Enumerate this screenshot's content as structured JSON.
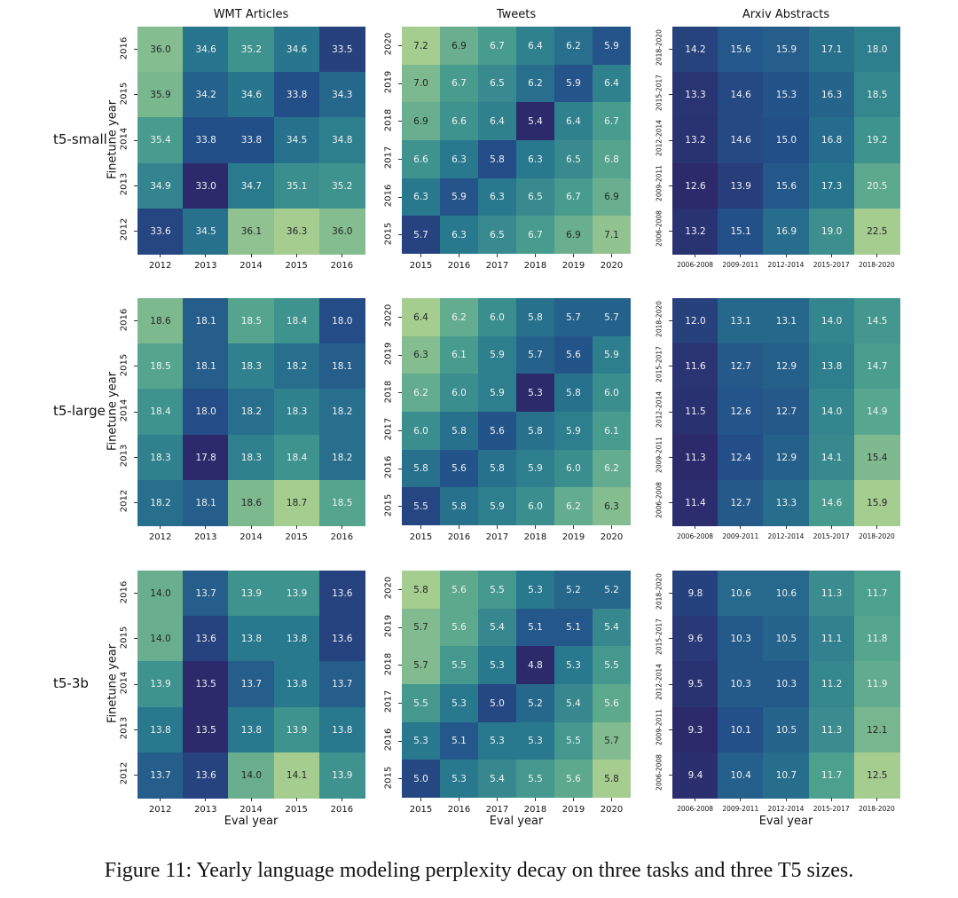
{
  "caption": "Figure 11: Yearly language modeling perplexity decay on three tasks and three T5 sizes.",
  "xlabel": "Eval year",
  "ylabel": "Finetune year",
  "tasks": [
    "WMT Articles",
    "Tweets",
    "Arxiv Abstracts"
  ],
  "models": [
    "t5-small",
    "t5-large",
    "t5-3b"
  ],
  "chart_data": {
    "type": "heatmap",
    "colormap": "crest_r",
    "colors": {
      "low": "#2c2a6b",
      "high": "#a5cd90"
    },
    "axes": {
      "WMT Articles": {
        "x": [
          "2012",
          "2013",
          "2014",
          "2015",
          "2016"
        ],
        "y_top_to_bottom": [
          "2016",
          "2015",
          "2014",
          "2013",
          "2012"
        ]
      },
      "Tweets": {
        "x": [
          "2015",
          "2016",
          "2017",
          "2018",
          "2019",
          "2020"
        ],
        "y_top_to_bottom": [
          "2020",
          "2019",
          "2018",
          "2017",
          "2016",
          "2015"
        ]
      },
      "Arxiv Abstracts": {
        "x": [
          "2006-2008",
          "2009-2011",
          "2012-2014",
          "2015-2017",
          "2018-2020"
        ],
        "y_top_to_bottom": [
          "2018-2020",
          "2015-2017",
          "2012-2014",
          "2009-2011",
          "2006-2008"
        ]
      }
    },
    "heatmaps": [
      {
        "model": "t5-small",
        "task": "WMT Articles",
        "values": [
          [
            36.0,
            34.6,
            35.2,
            34.6,
            33.5
          ],
          [
            35.9,
            34.2,
            34.6,
            33.8,
            34.3
          ],
          [
            35.4,
            33.8,
            33.8,
            34.5,
            34.8
          ],
          [
            34.9,
            33.0,
            34.7,
            35.1,
            35.2
          ],
          [
            33.6,
            34.5,
            36.1,
            36.3,
            36.0
          ]
        ]
      },
      {
        "model": "t5-small",
        "task": "Tweets",
        "values": [
          [
            7.2,
            6.9,
            6.7,
            6.4,
            6.2,
            5.9
          ],
          [
            7.0,
            6.7,
            6.5,
            6.2,
            5.9,
            6.4
          ],
          [
            6.9,
            6.6,
            6.4,
            5.4,
            6.4,
            6.7
          ],
          [
            6.6,
            6.3,
            5.8,
            6.3,
            6.5,
            6.8
          ],
          [
            6.3,
            5.9,
            6.3,
            6.5,
            6.7,
            6.9
          ],
          [
            5.7,
            6.3,
            6.5,
            6.7,
            6.9,
            7.1
          ]
        ]
      },
      {
        "model": "t5-small",
        "task": "Arxiv Abstracts",
        "values": [
          [
            14.2,
            15.6,
            15.9,
            17.1,
            18.0
          ],
          [
            13.3,
            14.6,
            15.3,
            16.3,
            18.5
          ],
          [
            13.2,
            14.6,
            15.0,
            16.8,
            19.2
          ],
          [
            12.6,
            13.9,
            15.6,
            17.3,
            20.5
          ],
          [
            13.2,
            15.1,
            16.9,
            19.0,
            22.5
          ]
        ]
      },
      {
        "model": "t5-large",
        "task": "WMT Articles",
        "values": [
          [
            18.6,
            18.1,
            18.5,
            18.4,
            18.0
          ],
          [
            18.5,
            18.1,
            18.3,
            18.2,
            18.1
          ],
          [
            18.4,
            18.0,
            18.2,
            18.3,
            18.2
          ],
          [
            18.3,
            17.8,
            18.3,
            18.4,
            18.2
          ],
          [
            18.2,
            18.1,
            18.6,
            18.7,
            18.5
          ]
        ]
      },
      {
        "model": "t5-large",
        "task": "Tweets",
        "values": [
          [
            6.4,
            6.2,
            6.0,
            5.8,
            5.7,
            5.7
          ],
          [
            6.3,
            6.1,
            5.9,
            5.7,
            5.6,
            5.9
          ],
          [
            6.2,
            6.0,
            5.9,
            5.3,
            5.8,
            6.0
          ],
          [
            6.0,
            5.8,
            5.6,
            5.8,
            5.9,
            6.1
          ],
          [
            5.8,
            5.6,
            5.8,
            5.9,
            6.0,
            6.2
          ],
          [
            5.5,
            5.8,
            5.9,
            6.0,
            6.2,
            6.3
          ]
        ]
      },
      {
        "model": "t5-large",
        "task": "Arxiv Abstracts",
        "values": [
          [
            12.0,
            13.1,
            13.1,
            14.0,
            14.5
          ],
          [
            11.6,
            12.7,
            12.9,
            13.8,
            14.7
          ],
          [
            11.5,
            12.6,
            12.7,
            14.0,
            14.9
          ],
          [
            11.3,
            12.4,
            12.9,
            14.1,
            15.4
          ],
          [
            11.4,
            12.7,
            13.3,
            14.6,
            15.9
          ]
        ]
      },
      {
        "model": "t5-3b",
        "task": "WMT Articles",
        "values": [
          [
            14.0,
            13.7,
            13.9,
            13.9,
            13.6
          ],
          [
            14.0,
            13.6,
            13.8,
            13.8,
            13.6
          ],
          [
            13.9,
            13.5,
            13.7,
            13.8,
            13.7
          ],
          [
            13.8,
            13.5,
            13.8,
            13.9,
            13.8
          ],
          [
            13.7,
            13.6,
            14.0,
            14.1,
            13.9
          ]
        ]
      },
      {
        "model": "t5-3b",
        "task": "Tweets",
        "values": [
          [
            5.8,
            5.6,
            5.5,
            5.3,
            5.2,
            5.2
          ],
          [
            5.7,
            5.6,
            5.4,
            5.1,
            5.1,
            5.4
          ],
          [
            5.7,
            5.5,
            5.3,
            4.8,
            5.3,
            5.5
          ],
          [
            5.5,
            5.3,
            5.0,
            5.2,
            5.4,
            5.6
          ],
          [
            5.3,
            5.1,
            5.3,
            5.3,
            5.5,
            5.7
          ],
          [
            5.0,
            5.3,
            5.4,
            5.5,
            5.6,
            5.8
          ]
        ]
      },
      {
        "model": "t5-3b",
        "task": "Arxiv Abstracts",
        "values": [
          [
            9.8,
            10.6,
            10.6,
            11.3,
            11.7
          ],
          [
            9.6,
            10.3,
            10.5,
            11.1,
            11.8
          ],
          [
            9.5,
            10.3,
            10.3,
            11.2,
            11.9
          ],
          [
            9.3,
            10.1,
            10.5,
            11.3,
            12.1
          ],
          [
            9.4,
            10.4,
            10.7,
            11.7,
            12.5
          ]
        ]
      }
    ]
  }
}
